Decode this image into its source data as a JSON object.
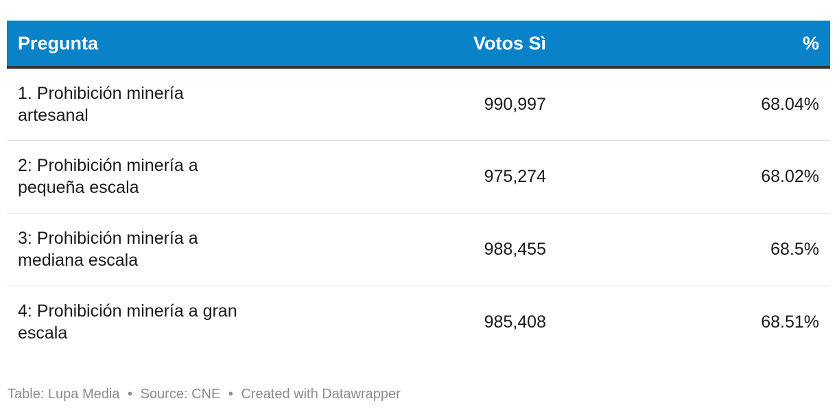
{
  "colors": {
    "header_background": "#0a82c8",
    "header_text": "#ffffff",
    "header_rule": "#333333",
    "row_divider": "#e0e0e0",
    "footer_text": "#8c8c8c"
  },
  "table": {
    "headers": [
      "Pregunta",
      "Votos Sì",
      "%"
    ],
    "rows": [
      {
        "pregunta": "1. Prohibición minería artesanal",
        "votos": "990,997",
        "pct": "68.04%"
      },
      {
        "pregunta": "2: Prohibición minería a pequeña escala",
        "votos": "975,274",
        "pct": "68.02%"
      },
      {
        "pregunta": "3: Prohibición minería a mediana escala",
        "votos": "988,455",
        "pct": "68.5%"
      },
      {
        "pregunta": "4: Prohibición minería a gran escala",
        "votos": "985,408",
        "pct": "68.51%"
      }
    ]
  },
  "footer": {
    "table_credit": "Table: Lupa Media",
    "source": "Source: CNE",
    "created": "Created with Datawrapper",
    "separator": "•"
  },
  "chart_data": {
    "type": "table",
    "columns": [
      "Pregunta",
      "Votos Sì",
      "%"
    ],
    "rows": [
      [
        "1. Prohibición minería artesanal",
        990997,
        68.04
      ],
      [
        "2: Prohibición minería a pequeña escala",
        975274,
        68.02
      ],
      [
        "3: Prohibición minería a mediana escala",
        988455,
        68.5
      ],
      [
        "4: Prohibición minería a gran escala",
        985408,
        68.51
      ]
    ]
  }
}
